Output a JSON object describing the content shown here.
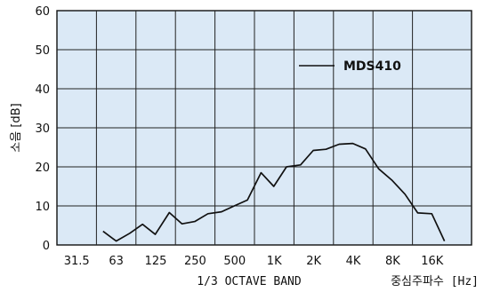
{
  "chart_data": {
    "type": "line",
    "ylabel": "소음 [dB]",
    "xlabel": "1/3 OCTAVE BAND",
    "xlabel_right": "중심주파수 [Hz]",
    "ylim": [
      0,
      60
    ],
    "yticks": [
      0,
      10,
      20,
      30,
      40,
      50,
      60
    ],
    "xticks": [
      "31.5",
      "63",
      "125",
      "250",
      "500",
      "1K",
      "2K",
      "4K",
      "8K",
      "16K"
    ],
    "grid": true,
    "legend_position": "top-right",
    "background_color": "#dbe9f6",
    "series": [
      {
        "name": "MDS410",
        "color": "#111111",
        "x": [
          50,
          63,
          80,
          100,
          125,
          160,
          200,
          250,
          315,
          400,
          500,
          630,
          800,
          1000,
          1250,
          1600,
          2000,
          2500,
          3150,
          4000,
          5000,
          6300,
          8000,
          10000,
          12500,
          16000,
          20000
        ],
        "values": [
          3.5,
          1,
          3,
          5.3,
          2.7,
          8.3,
          5.4,
          6,
          8,
          8.5,
          10,
          11.5,
          18.5,
          15,
          20,
          20.5,
          24.2,
          24.5,
          25.8,
          26,
          24.6,
          19.5,
          16.5,
          13,
          8.2,
          8,
          1
        ]
      }
    ]
  }
}
